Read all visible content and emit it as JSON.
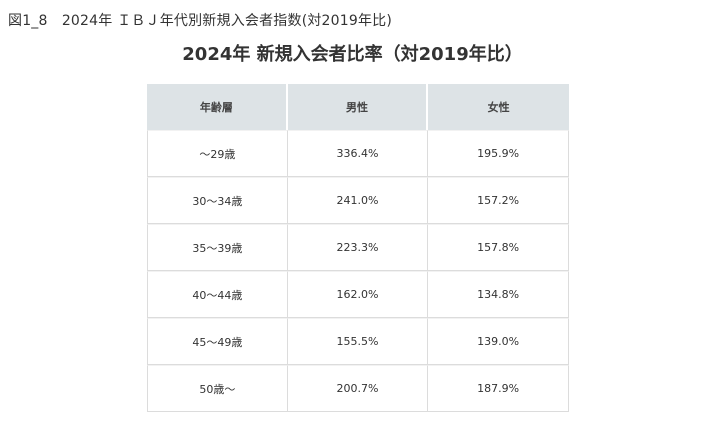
{
  "caption": "図1_8　2024年 ＩＢＪ年代別新規入会者指数(対2019年比)",
  "chart_data": {
    "type": "table",
    "title": "2024年 新規入会者比率（対2019年比）",
    "columns": [
      "年齢層",
      "男性",
      "女性"
    ],
    "rows": [
      {
        "age": "～29歳",
        "male": "336.4%",
        "female": "195.9%"
      },
      {
        "age": "30～34歳",
        "male": "241.0%",
        "female": "157.2%"
      },
      {
        "age": "35～39歳",
        "male": "223.3%",
        "female": "157.8%"
      },
      {
        "age": "40～44歳",
        "male": "162.0%",
        "female": "134.8%"
      },
      {
        "age": "45～49歳",
        "male": "155.5%",
        "female": "139.0%"
      },
      {
        "age": "50歳～",
        "male": "200.7%",
        "female": "187.9%"
      }
    ]
  }
}
